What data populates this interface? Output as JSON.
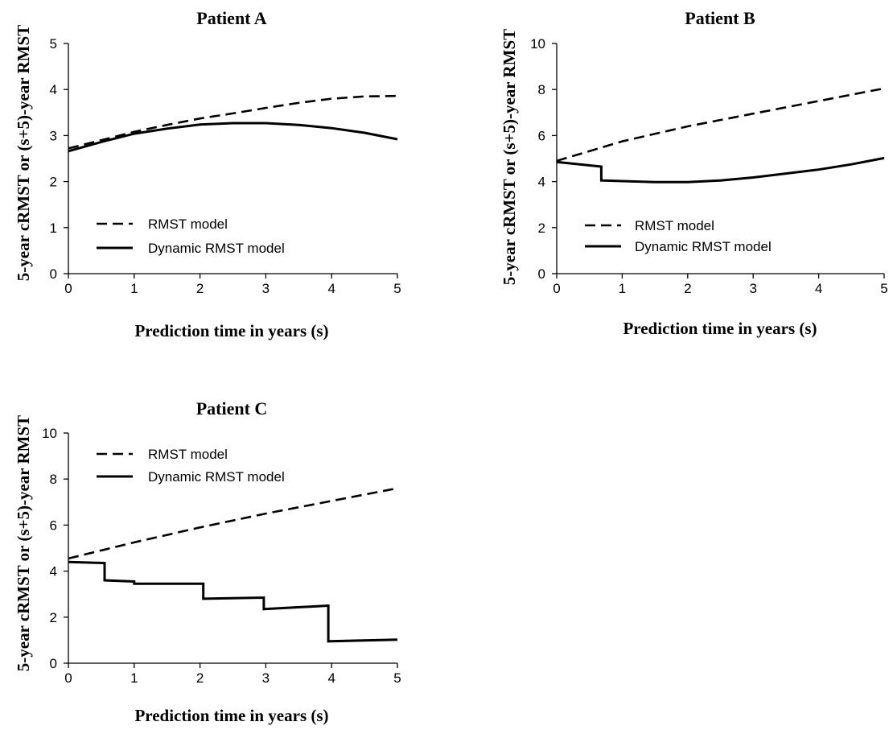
{
  "chart_data": [
    {
      "type": "line",
      "title": "Patient A",
      "xlabel": "Prediction time in years (s)",
      "ylabel": "5-year cRMST or (s+5)-year RMST",
      "xlim": [
        0,
        5
      ],
      "ylim": [
        0,
        5
      ],
      "x_ticks": [
        0,
        1,
        2,
        3,
        4,
        5
      ],
      "y_ticks": [
        0,
        1,
        2,
        3,
        4,
        5
      ],
      "grid": false,
      "legend_position": "lower-left",
      "series": [
        {
          "name": "RMST model",
          "style": "dashed",
          "color": "#000000",
          "x": [
            0,
            0.5,
            1,
            1.5,
            2,
            2.5,
            3,
            3.5,
            4,
            4.5,
            5
          ],
          "y": [
            2.72,
            2.9,
            3.08,
            3.23,
            3.37,
            3.48,
            3.6,
            3.71,
            3.8,
            3.85,
            3.86
          ]
        },
        {
          "name": "Dynamic RMST model",
          "style": "solid",
          "color": "#000000",
          "x": [
            0,
            0.5,
            1,
            1.5,
            2,
            2.5,
            3,
            3.5,
            4,
            4.5,
            5
          ],
          "y": [
            2.66,
            2.86,
            3.04,
            3.15,
            3.24,
            3.27,
            3.27,
            3.23,
            3.16,
            3.06,
            2.92
          ]
        }
      ]
    },
    {
      "type": "line",
      "title": "Patient B",
      "xlabel": "Prediction time in years (s)",
      "ylabel": "5-year cRMST or (s+5)-year RMST",
      "xlim": [
        0,
        5
      ],
      "ylim": [
        0,
        10
      ],
      "x_ticks": [
        0,
        1,
        2,
        3,
        4,
        5
      ],
      "y_ticks": [
        0,
        2,
        4,
        6,
        8,
        10
      ],
      "grid": false,
      "legend_position": "lower-left",
      "series": [
        {
          "name": "RMST model",
          "style": "dashed",
          "color": "#000000",
          "x": [
            0,
            1,
            2,
            3,
            4,
            5
          ],
          "y": [
            4.9,
            5.75,
            6.4,
            6.95,
            7.5,
            8.05
          ]
        },
        {
          "name": "Dynamic RMST model",
          "style": "solid",
          "color": "#000000",
          "x": [
            0,
            0.68,
            0.68,
            1,
            1.5,
            2,
            2.5,
            3,
            3.5,
            4,
            4.5,
            5
          ],
          "y": [
            4.85,
            4.65,
            4.05,
            4.02,
            3.98,
            3.98,
            4.05,
            4.18,
            4.35,
            4.52,
            4.75,
            5.02
          ]
        }
      ]
    },
    {
      "type": "line",
      "title": "Patient C",
      "xlabel": "Prediction time in years (s)",
      "ylabel": "5-year cRMST or (s+5)-year RMST",
      "xlim": [
        0,
        5
      ],
      "ylim": [
        0,
        10
      ],
      "x_ticks": [
        0,
        1,
        2,
        3,
        4,
        5
      ],
      "y_ticks": [
        0,
        2,
        4,
        6,
        8,
        10
      ],
      "grid": false,
      "legend_position": "upper-left",
      "series": [
        {
          "name": "RMST model",
          "style": "dashed",
          "color": "#000000",
          "x": [
            0,
            1,
            2,
            3,
            4,
            5
          ],
          "y": [
            4.55,
            5.25,
            5.9,
            6.5,
            7.05,
            7.6
          ]
        },
        {
          "name": "Dynamic RMST model",
          "style": "solid",
          "color": "#000000",
          "x": [
            0,
            0.55,
            0.55,
            1.0,
            1.0,
            2.05,
            2.05,
            2.97,
            2.97,
            3.95,
            3.95,
            5
          ],
          "y": [
            4.4,
            4.35,
            3.6,
            3.55,
            3.45,
            3.45,
            2.8,
            2.85,
            2.35,
            2.5,
            0.95,
            1.02
          ]
        }
      ]
    }
  ]
}
